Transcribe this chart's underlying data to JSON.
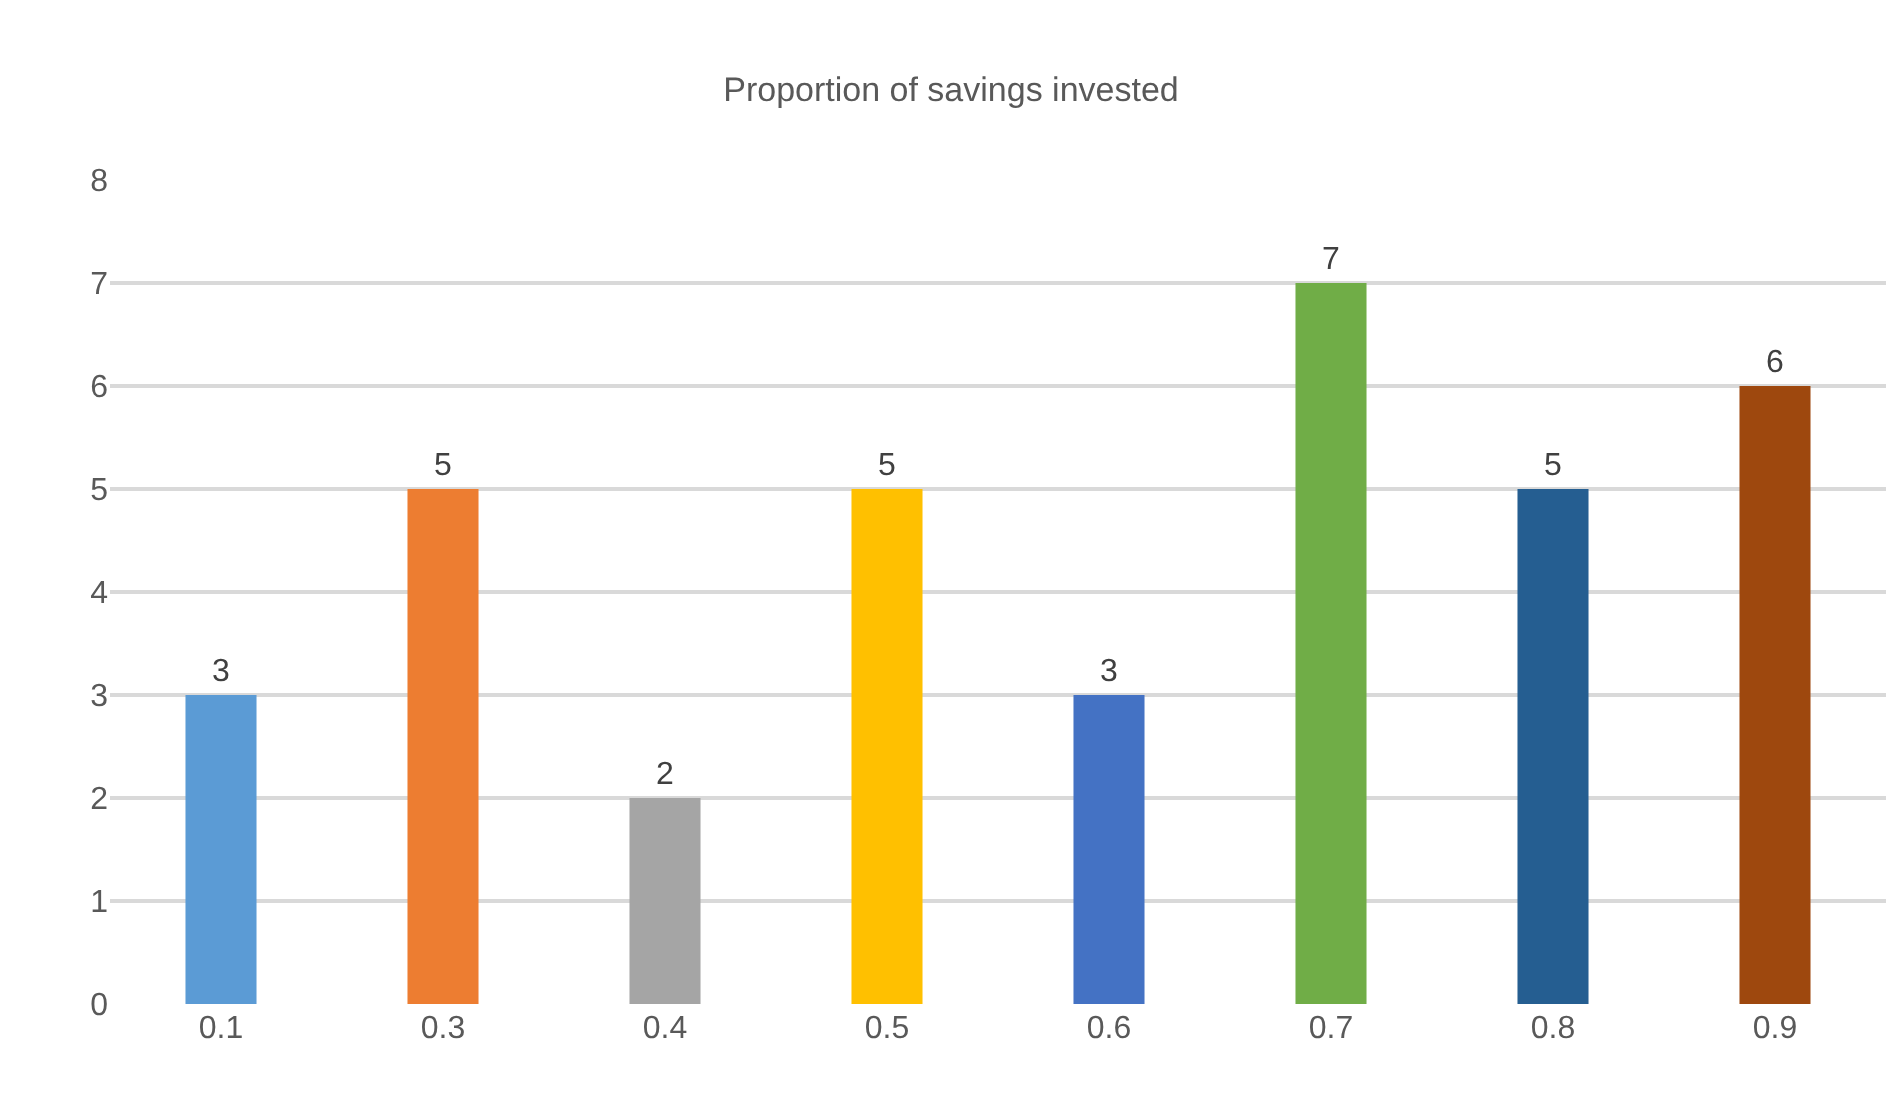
{
  "chart_data": {
    "type": "bar",
    "title": "Proportion of savings invested",
    "categories": [
      "0.1",
      "0.3",
      "0.4",
      "0.5",
      "0.6",
      "0.7",
      "0.8",
      "0.9"
    ],
    "values": [
      3,
      5,
      2,
      5,
      3,
      7,
      5,
      6
    ],
    "colors": [
      "#5b9bd5",
      "#ed7d31",
      "#a5a5a5",
      "#ffc000",
      "#4472c4",
      "#70ad47",
      "#255e91",
      "#9e480e"
    ],
    "ylim": [
      0,
      8
    ],
    "yticks": [
      0,
      1,
      2,
      3,
      4,
      5,
      6,
      7,
      8
    ],
    "grid": "y",
    "data_labels": true,
    "legend": false
  }
}
